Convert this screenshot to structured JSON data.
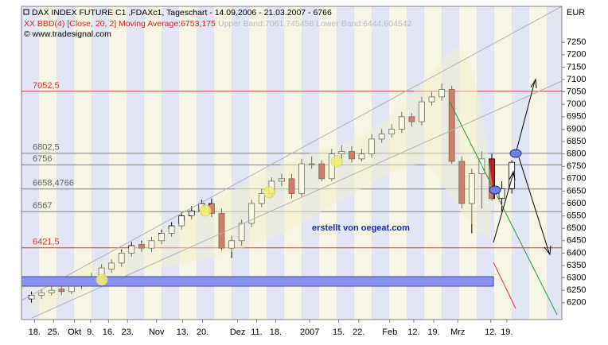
{
  "chart_data": {
    "type": "candlestick",
    "title": "DAX INDEX FUTURE C1 ,FDAXc1, Tageschart - 14.09.2006 - 21.03.2007 - 6766",
    "indicator": "XX BBD(4) [Close, 20, 2] Moving Average:6753,175",
    "indicator_bands": "Upper Band:7061,745458 Lower Band:6444,604542",
    "copyright": "© www.tradesignal.com",
    "currency": "EUR",
    "annotation": "erstellt von oegeat.com",
    "up_color": "#ffffff",
    "down_color": "#b22222",
    "open": [
      6215,
      6230,
      6240,
      6255,
      6245,
      6270,
      6290,
      6300,
      6335,
      6360,
      6400,
      6435,
      6420,
      6450,
      6480,
      6510,
      6550,
      6570,
      6600,
      6560,
      6420,
      6450,
      6520,
      6600,
      6640,
      6690,
      6700,
      6640,
      6760,
      6760,
      6700,
      6800,
      6810,
      6780,
      6800,
      6860,
      6880,
      6900,
      6950,
      6930,
      7010,
      7030,
      7060,
      6770,
      6600,
      6720,
      6780,
      6620,
      6660
    ],
    "high": [
      6245,
      6255,
      6265,
      6270,
      6285,
      6305,
      6320,
      6355,
      6375,
      6415,
      6445,
      6450,
      6465,
      6495,
      6525,
      6565,
      6590,
      6615,
      6620,
      6580,
      6470,
      6535,
      6615,
      6660,
      6705,
      6720,
      6720,
      6780,
      6790,
      6775,
      6820,
      6835,
      6830,
      6820,
      6880,
      6900,
      6920,
      6970,
      6965,
      7030,
      7050,
      7085,
      7075,
      6790,
      6740,
      6810,
      6800,
      6690,
      6775
    ],
    "low": [
      6200,
      6215,
      6230,
      6230,
      6235,
      6255,
      6280,
      6290,
      6320,
      6345,
      6385,
      6405,
      6405,
      6435,
      6465,
      6495,
      6535,
      6555,
      6545,
      6410,
      6380,
      6430,
      6505,
      6585,
      6625,
      6670,
      6620,
      6625,
      6740,
      6690,
      6690,
      6780,
      6765,
      6770,
      6785,
      6845,
      6865,
      6885,
      6910,
      6915,
      6995,
      7015,
      6760,
      6580,
      6480,
      6580,
      6610,
      6570,
      6640
    ],
    "close": [
      6230,
      6240,
      6250,
      6245,
      6270,
      6290,
      6300,
      6340,
      6360,
      6400,
      6430,
      6420,
      6450,
      6480,
      6510,
      6550,
      6570,
      6600,
      6560,
      6420,
      6450,
      6520,
      6600,
      6640,
      6690,
      6700,
      6640,
      6760,
      6760,
      6700,
      6800,
      6810,
      6780,
      6800,
      6860,
      6880,
      6900,
      6950,
      6930,
      7010,
      7030,
      7060,
      6770,
      6600,
      6720,
      6780,
      6620,
      6660,
      6766
    ],
    "xlim": [
      -1,
      53
    ],
    "xticks": [
      {
        "value": 0.3,
        "label": "18."
      },
      {
        "value": 2.2,
        "label": "25."
      },
      {
        "value": 4.3,
        "label": "Okt"
      },
      {
        "value": 5.9,
        "label": "9."
      },
      {
        "value": 7.7,
        "label": "16."
      },
      {
        "value": 9.6,
        "label": "23."
      },
      {
        "value": 12.5,
        "label": "Nov"
      },
      {
        "value": 15.1,
        "label": "13."
      },
      {
        "value": 17.1,
        "label": "20."
      },
      {
        "value": 20.6,
        "label": "Dez"
      },
      {
        "value": 22.5,
        "label": "11."
      },
      {
        "value": 24.4,
        "label": "18."
      },
      {
        "value": 27.8,
        "label": "2007"
      },
      {
        "value": 30.7,
        "label": "15."
      },
      {
        "value": 32.7,
        "label": "22."
      },
      {
        "value": 35.8,
        "label": "Feb"
      },
      {
        "value": 38.2,
        "label": "12."
      },
      {
        "value": 40.2,
        "label": "19."
      },
      {
        "value": 42.6,
        "label": "Mrz"
      },
      {
        "value": 45.9,
        "label": "12."
      },
      {
        "value": 47.5,
        "label": "19."
      }
    ],
    "ylim": [
      6132,
      7395
    ],
    "yticks": [
      6200,
      6250,
      6300,
      6350,
      6400,
      6450,
      6500,
      6550,
      6600,
      6650,
      6700,
      6750,
      6800,
      6850,
      6900,
      6950,
      7000,
      7050,
      7100,
      7150,
      7200,
      7250
    ],
    "levels": [
      {
        "value": 7052.5,
        "label": "7052,5",
        "color": "#e03030"
      },
      {
        "value": 6802.5,
        "label": "6802,5",
        "color": "#808080"
      },
      {
        "value": 6756,
        "label": "6756",
        "color": "#808080"
      },
      {
        "value": 6658.4766,
        "label": "6658,4766",
        "color": "#808080"
      },
      {
        "value": 6567,
        "label": "6567",
        "color": "#808080"
      },
      {
        "value": 6421.5,
        "label": "6421,5",
        "color": "#e03030"
      }
    ]
  }
}
